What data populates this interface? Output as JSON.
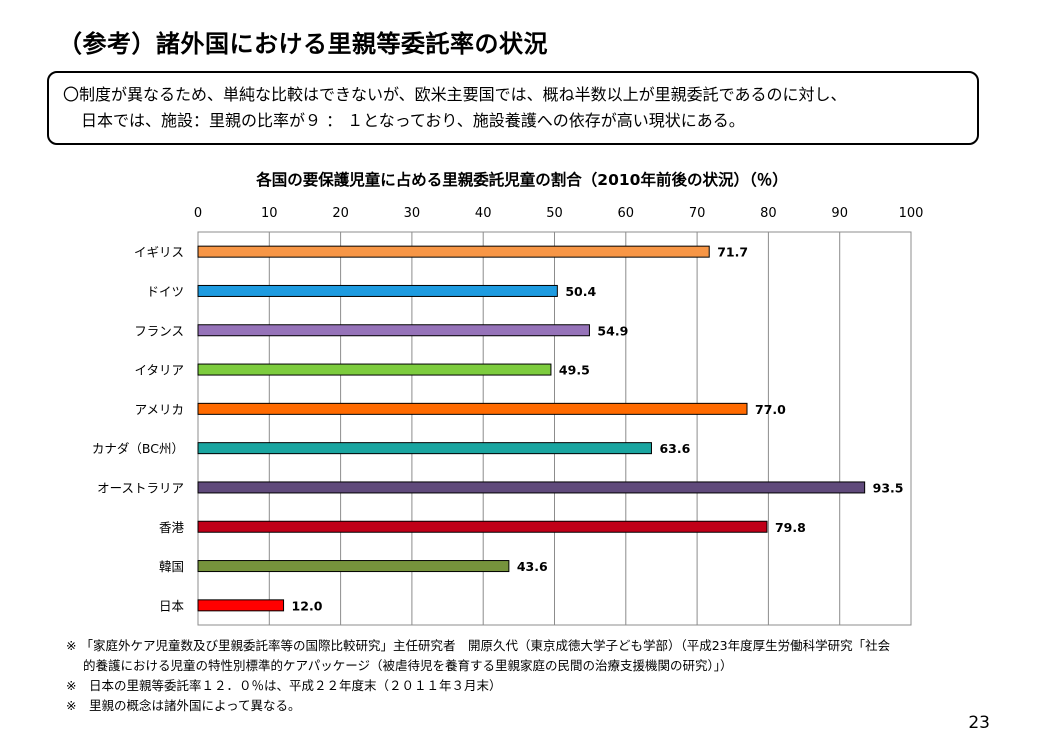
{
  "slide": {
    "title": "（参考）諸外国における里親等委託率の状況",
    "summary_line1": "〇制度が異なるため、単純な比較はできないが、欧米主要国では、概ね半数以上が里親委託であるのに対し、",
    "summary_line2": "日本では、施設：里親の比率が９ ： １となっており、施設養護への依存が高い現状にある。",
    "page_number": "23"
  },
  "footnotes": [
    {
      "line1": "※ 「家庭外ケア児童数及び里親委託率等の国際比較研究」主任研究者　開原久代（東京成徳大学子ども学部）（平成23年度厚生労働科学研究「社会",
      "line2": "的養護における児童の特性別標準的ケアパッケージ（被虐待児を養育する里親家庭の民間の治療支援機関の研究）」）"
    },
    {
      "line1": "※　日本の里親等委託率１２．０％は、平成２２年度末（２０１１年３月末）",
      "line2": ""
    },
    {
      "line1": "※　里親の概念は諸外国によって異なる。",
      "line2": ""
    }
  ],
  "chart_data": {
    "type": "bar",
    "orientation": "horizontal",
    "title": "各国の要保護児童に占める里親委託児童の割合（2010年前後の状況）（％）",
    "categories": [
      "イギリス",
      "ドイツ",
      "フランス",
      "イタリア",
      "アメリカ",
      "カナダ（BC州）",
      "オーストラリア",
      "香港",
      "韓国",
      "日本"
    ],
    "values": [
      71.7,
      50.4,
      54.9,
      49.5,
      77.0,
      63.6,
      93.5,
      79.8,
      43.6,
      12.0
    ],
    "value_labels": [
      "71.7",
      "50.4",
      "54.9",
      "49.5",
      "77.0",
      "63.6",
      "93.5",
      "79.8",
      "43.6",
      "12.0"
    ],
    "colors": [
      "#F79646",
      "#1E9BE0",
      "#9673B9",
      "#7DCC3E",
      "#FF6A00",
      "#1AA5A0",
      "#604A7B",
      "#C00018",
      "#76933C",
      "#FF0000"
    ],
    "xlim": [
      0,
      100
    ],
    "xticks": [
      "0",
      "10",
      "20",
      "30",
      "40",
      "50",
      "60",
      "70",
      "80",
      "90",
      "100"
    ],
    "x_axis_position": "top",
    "grid": true,
    "legend": "none"
  }
}
